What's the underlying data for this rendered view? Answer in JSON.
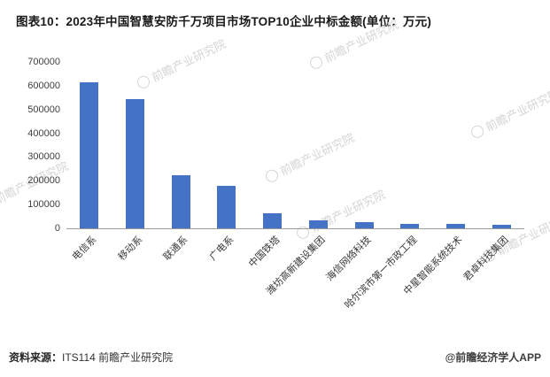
{
  "title": "图表10：2023年中国智慧安防千万项目市场TOP10企业中标金额(单位：万元)",
  "chart_data": {
    "type": "bar",
    "title": "2023年中国智慧安防千万项目市场TOP10企业中标金额",
    "unit": "万元",
    "categories": [
      "电信系",
      "移动系",
      "联通系",
      "广电系",
      "中国铁塔",
      "潍坊高新建设集团",
      "海信网络科技",
      "哈尔滨市第一市政工程",
      "中星智能系统技术",
      "君卓科技集团"
    ],
    "values": [
      615000,
      545000,
      225000,
      180000,
      65000,
      35000,
      25000,
      20000,
      18000,
      15000
    ],
    "xlabel": "",
    "ylabel": "",
    "ylim": [
      0,
      700000
    ],
    "yticks": [
      0,
      100000,
      200000,
      300000,
      400000,
      500000,
      600000,
      700000
    ],
    "grid": false,
    "legend": false,
    "bar_color": "#4472C4"
  },
  "watermark": {
    "text": "前瞻产业研究院",
    "color": "#d5d5d5"
  },
  "footer": {
    "source_label": "资料来源：",
    "source_value": "ITS114 前瞻产业研究院",
    "credit": "@前瞻经济学人APP"
  }
}
